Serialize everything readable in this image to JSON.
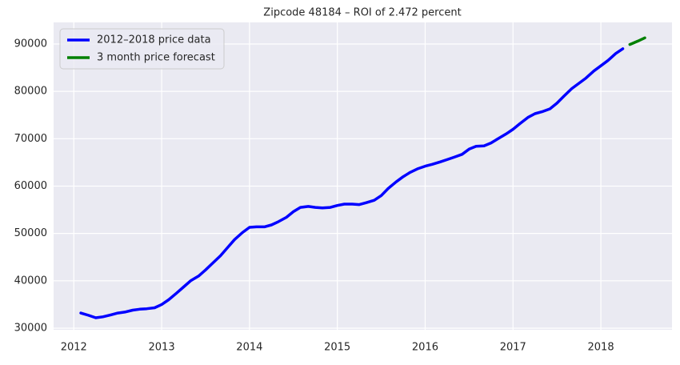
{
  "chart_data": {
    "type": "line",
    "title": "Zipcode 48184 – ROI of 2.472 percent",
    "series": [
      {
        "name": "2012–2018 price data",
        "color": "#0000ff",
        "x": [
          2012.08,
          2012.17,
          2012.25,
          2012.33,
          2012.42,
          2012.5,
          2012.58,
          2012.67,
          2012.75,
          2012.83,
          2012.92,
          2013.0,
          2013.08,
          2013.17,
          2013.25,
          2013.33,
          2013.42,
          2013.5,
          2013.58,
          2013.67,
          2013.75,
          2013.83,
          2013.92,
          2014.0,
          2014.08,
          2014.17,
          2014.25,
          2014.33,
          2014.42,
          2014.5,
          2014.58,
          2014.67,
          2014.75,
          2014.83,
          2014.92,
          2015.0,
          2015.08,
          2015.17,
          2015.25,
          2015.33,
          2015.42,
          2015.5,
          2015.58,
          2015.67,
          2015.75,
          2015.83,
          2015.92,
          2016.0,
          2016.08,
          2016.17,
          2016.25,
          2016.33,
          2016.42,
          2016.5,
          2016.58,
          2016.67,
          2016.75,
          2016.83,
          2016.92,
          2017.0,
          2017.08,
          2017.17,
          2017.25,
          2017.33,
          2017.42,
          2017.5,
          2017.58,
          2017.67,
          2017.75,
          2017.83,
          2017.92,
          2018.0,
          2018.08,
          2018.17,
          2018.25
        ],
        "values": [
          33200,
          32700,
          32200,
          32400,
          32800,
          33200,
          33400,
          33800,
          34000,
          34100,
          34300,
          35000,
          36000,
          37400,
          38700,
          40000,
          41000,
          42300,
          43700,
          45300,
          47000,
          48700,
          50200,
          51300,
          51400,
          51400,
          51800,
          52500,
          53400,
          54600,
          55500,
          55700,
          55500,
          55400,
          55500,
          55900,
          56200,
          56200,
          56100,
          56500,
          57000,
          58000,
          59500,
          60900,
          62000,
          62900,
          63700,
          64200,
          64600,
          65100,
          65600,
          66100,
          66700,
          67800,
          68400,
          68500,
          69100,
          70000,
          71000,
          72000,
          73200,
          74500,
          75300,
          75700,
          76300,
          77500,
          79000,
          80600,
          81700,
          82800,
          84300,
          85400,
          86500,
          88000,
          89000
        ]
      },
      {
        "name": "3 month price forecast",
        "color": "#008000",
        "x": [
          2018.33,
          2018.42,
          2018.5
        ],
        "values": [
          89900,
          90600,
          91300
        ]
      }
    ],
    "xlim": [
      2011.77,
      2018.81
    ],
    "xticks": [
      2012,
      2013,
      2014,
      2015,
      2016,
      2017,
      2018
    ],
    "ylim": [
      29660,
      94560
    ],
    "yticks": [
      30000,
      40000,
      50000,
      60000,
      70000,
      80000,
      90000
    ],
    "grid": true,
    "legend": "upper-left"
  }
}
